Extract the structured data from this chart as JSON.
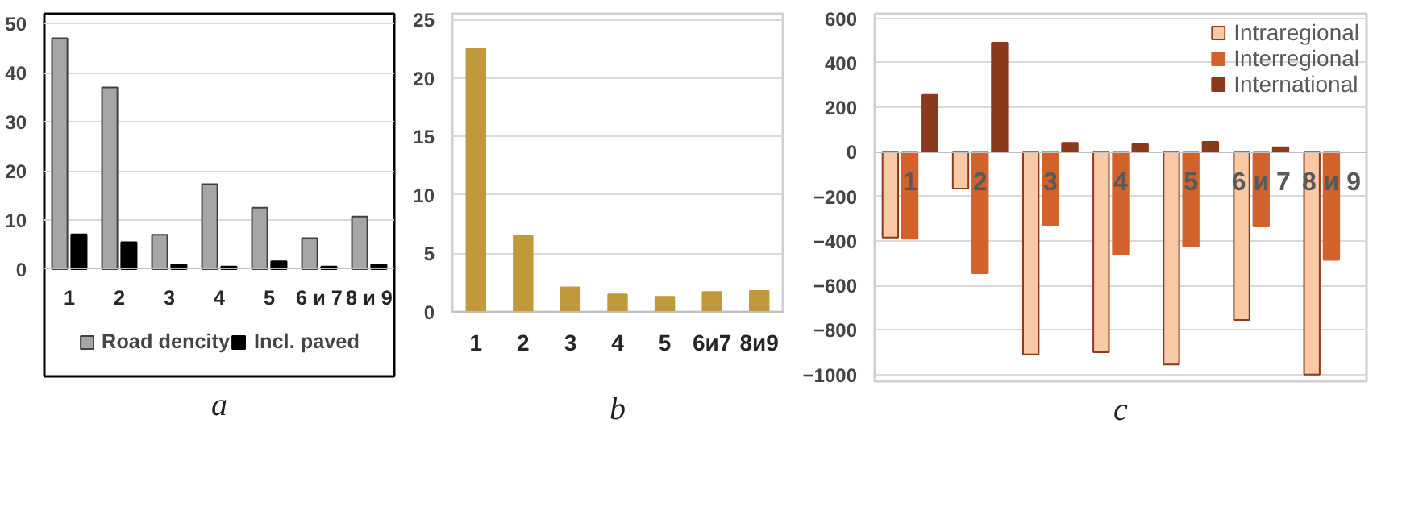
{
  "chart_data": [
    {
      "type": "bar",
      "categories": [
        "1",
        "2",
        "3",
        "4",
        "5",
        "6 и 7",
        "8 и 9"
      ],
      "series": [
        {
          "name": "Road dencity",
          "color": "#a6a6a6",
          "values": [
            47,
            37,
            7,
            17.3,
            12.5,
            6.3,
            10.7
          ]
        },
        {
          "name": "Incl. paved",
          "color": "#000000",
          "values": [
            7.1,
            5.5,
            0.9,
            0.5,
            1.6,
            0.5,
            0.9
          ]
        }
      ],
      "ylim": [
        0,
        52
      ],
      "yticks": [
        0,
        10,
        20,
        30,
        40,
        50
      ],
      "grid": "y",
      "legend": "bottom",
      "annotations": [
        "a"
      ]
    },
    {
      "type": "bar",
      "categories": [
        "1",
        "2",
        "3",
        "4",
        "5",
        "6и7",
        "8и9"
      ],
      "series": [
        {
          "color": "#c09a3a",
          "values": [
            22.5,
            6.5,
            2.1,
            1.5,
            1.3,
            1.7,
            1.8
          ]
        }
      ],
      "ylim": [
        0,
        25.5
      ],
      "yticks": [
        0,
        5,
        10,
        15,
        20,
        25
      ],
      "grid": "y",
      "annotations": [
        "b"
      ]
    },
    {
      "type": "bar",
      "categories": [
        "1",
        "2",
        "3",
        "4",
        "5",
        "6 и 7",
        "8 и 9"
      ],
      "series": [
        {
          "name": "Intraregional",
          "color": "#f9c9a5",
          "values": [
            -385,
            -165,
            -910,
            -900,
            -955,
            -755,
            -1000
          ]
        },
        {
          "name": "Interregional",
          "color": "#d2622b",
          "values": [
            -390,
            -545,
            -330,
            -460,
            -425,
            -335,
            -485
          ]
        },
        {
          "name": "International",
          "color": "#8b3a1c",
          "values": [
            255,
            490,
            40,
            35,
            45,
            20,
            null
          ]
        }
      ],
      "ylim": [
        -1030,
        620
      ],
      "yticks": [
        -1000,
        -800,
        -600,
        -400,
        -200,
        0,
        200,
        400,
        600
      ],
      "grid": "y",
      "legend": "top right",
      "annotations": [
        "c"
      ]
    }
  ]
}
